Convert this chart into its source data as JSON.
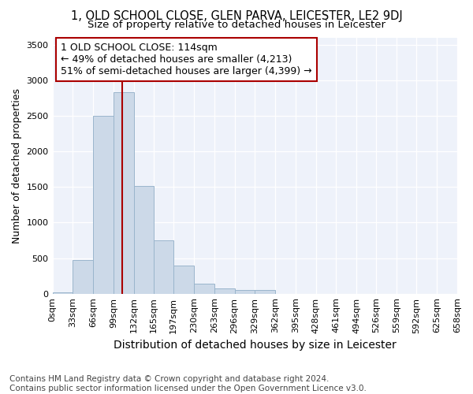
{
  "title": "1, OLD SCHOOL CLOSE, GLEN PARVA, LEICESTER, LE2 9DJ",
  "subtitle": "Size of property relative to detached houses in Leicester",
  "xlabel": "Distribution of detached houses by size in Leicester",
  "ylabel": "Number of detached properties",
  "footer_line1": "Contains HM Land Registry data © Crown copyright and database right 2024.",
  "footer_line2": "Contains public sector information licensed under the Open Government Licence v3.0.",
  "annotation_line1": "1 OLD SCHOOL CLOSE: 114sqm",
  "annotation_line2": "← 49% of detached houses are smaller (4,213)",
  "annotation_line3": "51% of semi-detached houses are larger (4,399) →",
  "property_size": 114,
  "bar_color": "#ccd9e8",
  "bar_edge_color": "#9ab5cc",
  "vline_color": "#aa0000",
  "background_color": "#eef2fa",
  "bin_edges": [
    0,
    33,
    66,
    99,
    132,
    165,
    197,
    230,
    263,
    296,
    329,
    362,
    395,
    428,
    461,
    494,
    526,
    559,
    592,
    625,
    658
  ],
  "bar_heights": [
    20,
    470,
    2500,
    2830,
    1510,
    750,
    390,
    140,
    70,
    55,
    55,
    0,
    0,
    0,
    0,
    0,
    0,
    0,
    0,
    0
  ],
  "ylim": [
    0,
    3600
  ],
  "yticks": [
    0,
    500,
    1000,
    1500,
    2000,
    2500,
    3000,
    3500
  ],
  "title_fontsize": 10.5,
  "subtitle_fontsize": 9.5,
  "xlabel_fontsize": 10,
  "ylabel_fontsize": 9,
  "tick_fontsize": 8,
  "annotation_fontsize": 9,
  "footer_fontsize": 7.5
}
